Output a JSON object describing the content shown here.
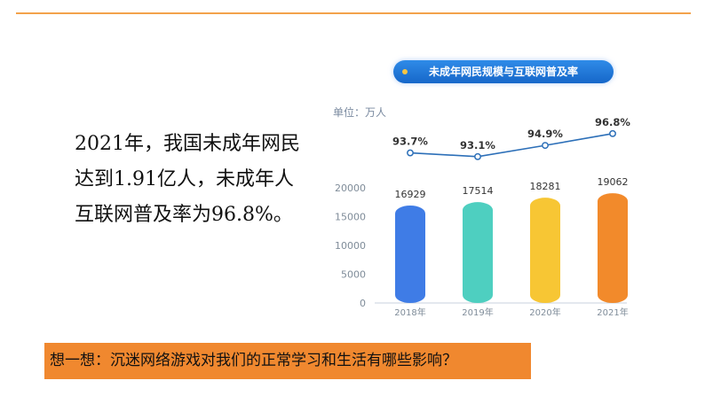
{
  "text_block": {
    "lines": [
      "2021年，我国未成年网民",
      "达到1.91亿人，未成年人",
      "互联网普及率为96.8%。"
    ]
  },
  "banner": {
    "text": "想一想：沉迷网络游戏对我们的正常学习和生活有哪些影响？"
  },
  "colors": {
    "accent_line": "#f3a24b",
    "banner_bg": "#f0882f",
    "line_series": "#2c6fb8",
    "bar_colors": [
      "#3f7ce6",
      "#4ecfc0",
      "#f7c634",
      "#f28a2b"
    ]
  },
  "chart_data": {
    "type": "bar",
    "title": "未成年网民规模与互联网普及率",
    "unit_label": "单位：万人",
    "categories": [
      "2018年",
      "2019年",
      "2020年",
      "2021年"
    ],
    "series": [
      {
        "values": [
          16929,
          17514,
          18281,
          19062
        ]
      },
      {
        "values": [
          93.7,
          93.1,
          94.9,
          96.8
        ],
        "value_labels": [
          "93.7%",
          "93.1%",
          "94.9%",
          "96.8%"
        ]
      }
    ],
    "yticks": [
      0,
      5000,
      10000,
      15000,
      20000
    ],
    "ylim": [
      0,
      20000
    ],
    "percent_range": [
      91.5,
      97.2
    ],
    "grid": false
  }
}
